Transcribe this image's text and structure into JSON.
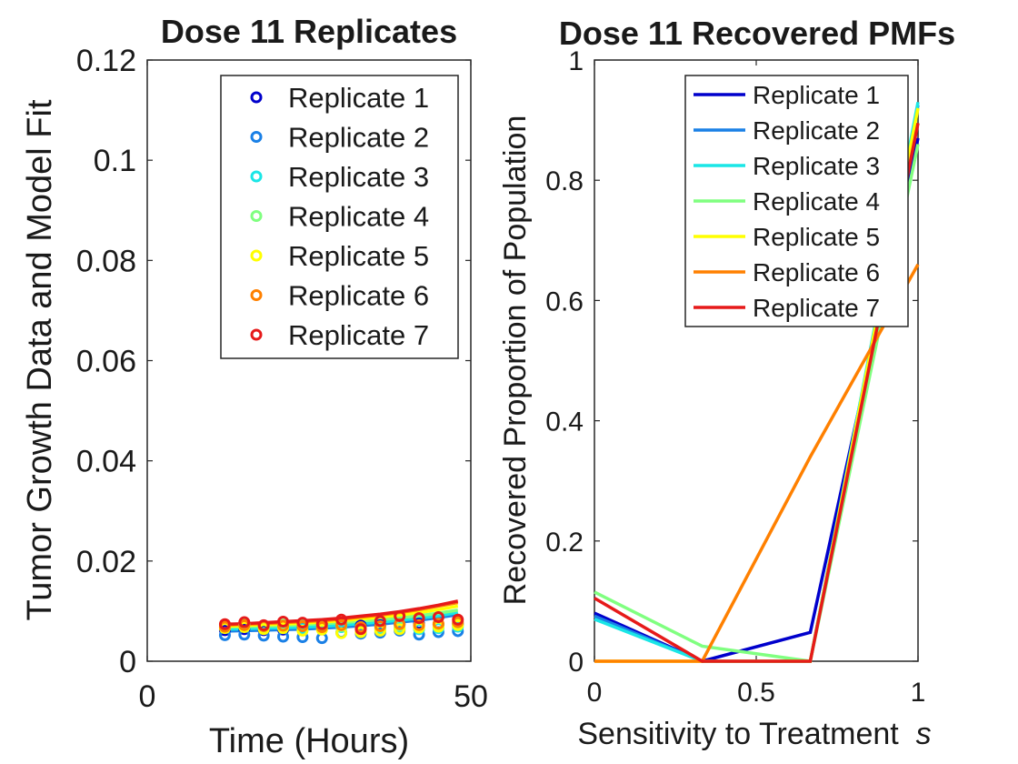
{
  "chart_data": [
    {
      "type": "scatter",
      "title": "Dose 11 Replicates",
      "xlabel": "Time (Hours)",
      "ylabel": "Tumor Growth Data and Model Fit",
      "xlim": [
        0,
        50
      ],
      "ylim": [
        0,
        0.12
      ],
      "xticks": [
        "0",
        "50"
      ],
      "yticks": [
        "0",
        "0.02",
        "0.04",
        "0.06",
        "0.08",
        "0.1",
        "0.12"
      ],
      "legend_position": "top-right",
      "x": [
        12,
        15,
        18,
        21,
        24,
        27,
        30,
        33,
        36,
        39,
        42,
        45,
        48
      ],
      "series": [
        {
          "name": "Replicate 1",
          "color": "#0000cc",
          "values": [
            0.0062,
            0.0064,
            0.0062,
            0.0063,
            0.0066,
            0.0068,
            0.0069,
            0.0071,
            0.0072,
            0.0074,
            0.0075,
            0.0073,
            0.0074
          ],
          "fit": [
            0.0062,
            0.0063,
            0.0064,
            0.0065,
            0.0066,
            0.0068,
            0.007,
            0.0073,
            0.0076,
            0.008,
            0.0084,
            0.0089,
            0.0095
          ]
        },
        {
          "name": "Replicate 2",
          "color": "#1a80e6",
          "values": [
            0.0052,
            0.0053,
            0.0051,
            0.0049,
            0.0048,
            0.0046,
            0.0057,
            0.0055,
            0.0057,
            0.0061,
            0.0053,
            0.0058,
            0.006
          ],
          "fit": [
            0.006,
            0.0061,
            0.0062,
            0.0063,
            0.0064,
            0.0066,
            0.0068,
            0.0071,
            0.0074,
            0.0078,
            0.0082,
            0.0087,
            0.0093
          ]
        },
        {
          "name": "Replicate 3",
          "color": "#1ae6e6",
          "values": [
            0.0068,
            0.0071,
            0.0066,
            0.0068,
            0.0064,
            0.0066,
            0.0068,
            0.0067,
            0.0064,
            0.0066,
            0.0064,
            0.0066,
            0.0069
          ],
          "fit": [
            0.0064,
            0.0065,
            0.0066,
            0.0067,
            0.0068,
            0.007,
            0.0072,
            0.0075,
            0.0078,
            0.0082,
            0.0086,
            0.0091,
            0.0097
          ]
        },
        {
          "name": "Replicate 4",
          "color": "#80ff80",
          "values": [
            0.0072,
            0.0074,
            0.0069,
            0.0073,
            0.0071,
            0.0069,
            0.007,
            0.0068,
            0.0069,
            0.0071,
            0.0072,
            0.0074,
            0.0075
          ],
          "fit": [
            0.0068,
            0.0069,
            0.007,
            0.0071,
            0.0073,
            0.0075,
            0.0077,
            0.008,
            0.0083,
            0.0087,
            0.0091,
            0.0096,
            0.0102
          ]
        },
        {
          "name": "Replicate 5",
          "color": "#ffff00",
          "values": [
            0.0066,
            0.0068,
            0.0064,
            0.0066,
            0.0061,
            0.0063,
            0.0056,
            0.0058,
            0.0061,
            0.0064,
            0.0067,
            0.0069,
            0.0072
          ],
          "fit": [
            0.007,
            0.0071,
            0.0073,
            0.0074,
            0.0076,
            0.0078,
            0.0081,
            0.0084,
            0.0088,
            0.0092,
            0.0097,
            0.0103,
            0.011
          ]
        },
        {
          "name": "Replicate 6",
          "color": "#ff8000",
          "values": [
            0.0069,
            0.0072,
            0.007,
            0.0071,
            0.007,
            0.0068,
            0.0072,
            0.0068,
            0.007,
            0.0074,
            0.0072,
            0.0075,
            0.0078
          ],
          "fit": [
            0.0072,
            0.0074,
            0.0075,
            0.0077,
            0.0079,
            0.0081,
            0.0084,
            0.0088,
            0.0092,
            0.0097,
            0.0103,
            0.011,
            0.0117
          ]
        },
        {
          "name": "Replicate 7",
          "color": "#e61a1a",
          "values": [
            0.0074,
            0.0078,
            0.0072,
            0.0079,
            0.0077,
            0.0074,
            0.0083,
            0.0064,
            0.008,
            0.009,
            0.0086,
            0.0088,
            0.0083
          ],
          "fit": [
            0.0074,
            0.0075,
            0.0077,
            0.0079,
            0.0081,
            0.0083,
            0.0086,
            0.009,
            0.0094,
            0.0099,
            0.0105,
            0.0112,
            0.012
          ]
        }
      ]
    },
    {
      "type": "line",
      "title": "Dose 11 Recovered PMFs",
      "xlabel": "Sensitivity to Treatment",
      "xlabel_symbol": "s",
      "ylabel": "Recovered Proportion of Population",
      "xlim": [
        0,
        1
      ],
      "ylim": [
        0,
        1
      ],
      "xticks": [
        "0",
        "0.5",
        "1"
      ],
      "yticks": [
        "0",
        "0.2",
        "0.4",
        "0.6",
        "0.8",
        "1"
      ],
      "legend_position": "top-right",
      "x": [
        0,
        0.333,
        0.667,
        1
      ],
      "series": [
        {
          "name": "Replicate 1",
          "color": "#0000cc",
          "values": [
            0.08,
            0,
            0.048,
            0.87
          ]
        },
        {
          "name": "Replicate 2",
          "color": "#1a80e6",
          "values": [
            0.075,
            0,
            0,
            0.925
          ]
        },
        {
          "name": "Replicate 3",
          "color": "#1ae6e6",
          "values": [
            0.07,
            0,
            0,
            0.93
          ]
        },
        {
          "name": "Replicate 4",
          "color": "#80ff80",
          "values": [
            0.115,
            0.025,
            0,
            0.86
          ]
        },
        {
          "name": "Replicate 5",
          "color": "#ffff00",
          "values": [
            0,
            0,
            0,
            0.92
          ]
        },
        {
          "name": "Replicate 6",
          "color": "#ff8000",
          "values": [
            0,
            0,
            0.34,
            0.66
          ]
        },
        {
          "name": "Replicate 7",
          "color": "#e61a1a",
          "values": [
            0.105,
            0,
            0,
            0.895
          ]
        }
      ]
    }
  ]
}
